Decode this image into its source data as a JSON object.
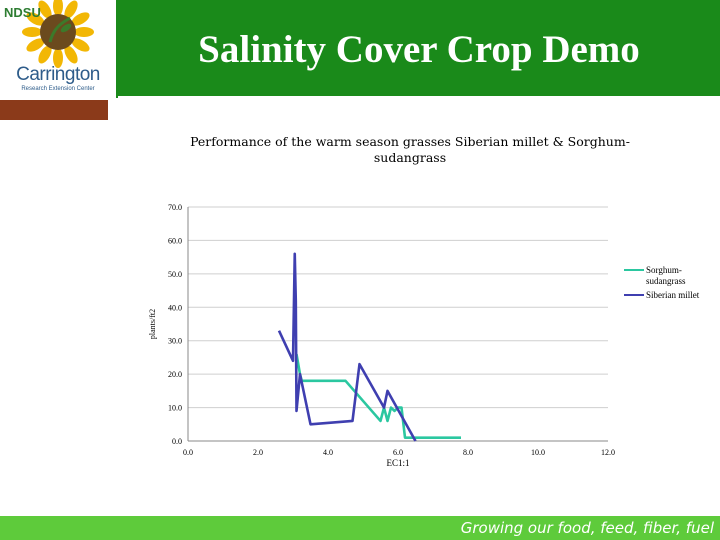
{
  "header": {
    "title": "Salinity Cover Crop Demo",
    "logo_text": "Carrington",
    "logo_subtext": "Research Extension Center",
    "logo_letters": "NDSU"
  },
  "footer": {
    "tagline": "Growing our food, feed, fiber, fuel"
  },
  "colors": {
    "header_green": "#1a8a1a",
    "footer_green": "#5ecb3b",
    "accent_brown": "#8b3a1a",
    "series_sorghum": "#2bc7a0",
    "series_millet": "#3f3fb0"
  },
  "chart_data": {
    "type": "line",
    "title": "Performance of the warm season grasses Siberian millet & Sorghum-sudangrass",
    "xlabel": "EC1:1",
    "ylabel": "plants/ft2",
    "xlim": [
      0,
      12
    ],
    "ylim": [
      0,
      70
    ],
    "x_ticks": [
      "0.0",
      "2.0",
      "4.0",
      "6.0",
      "8.0",
      "10.0",
      "12.0"
    ],
    "y_ticks": [
      "0.0",
      "10.0",
      "20.0",
      "30.0",
      "40.0",
      "50.0",
      "60.0",
      "70.0"
    ],
    "grid": true,
    "legend_position": "right",
    "series": [
      {
        "name": "Sorghum-sudangrass",
        "color": "#2bc7a0",
        "x": [
          3.1,
          3.2,
          3.25,
          4.5,
          5.5,
          5.6,
          5.7,
          5.8,
          5.9,
          6.0,
          6.1,
          6.2,
          6.3,
          7.8
        ],
        "y": [
          26.0,
          20.0,
          18.0,
          18.0,
          6.0,
          10.0,
          6.0,
          10.0,
          9.0,
          10.0,
          10.0,
          1.0,
          1.0,
          1.0
        ]
      },
      {
        "name": "Siberian millet",
        "color": "#3f3fb0",
        "x": [
          2.6,
          3.0,
          3.05,
          3.08,
          3.1,
          3.2,
          3.5,
          4.7,
          4.9,
          5.6,
          5.7,
          6.5
        ],
        "y": [
          33.0,
          24.0,
          56.0,
          42.0,
          9.0,
          20.0,
          5.0,
          6.0,
          23.0,
          10.0,
          15.0,
          0.0
        ]
      }
    ]
  }
}
